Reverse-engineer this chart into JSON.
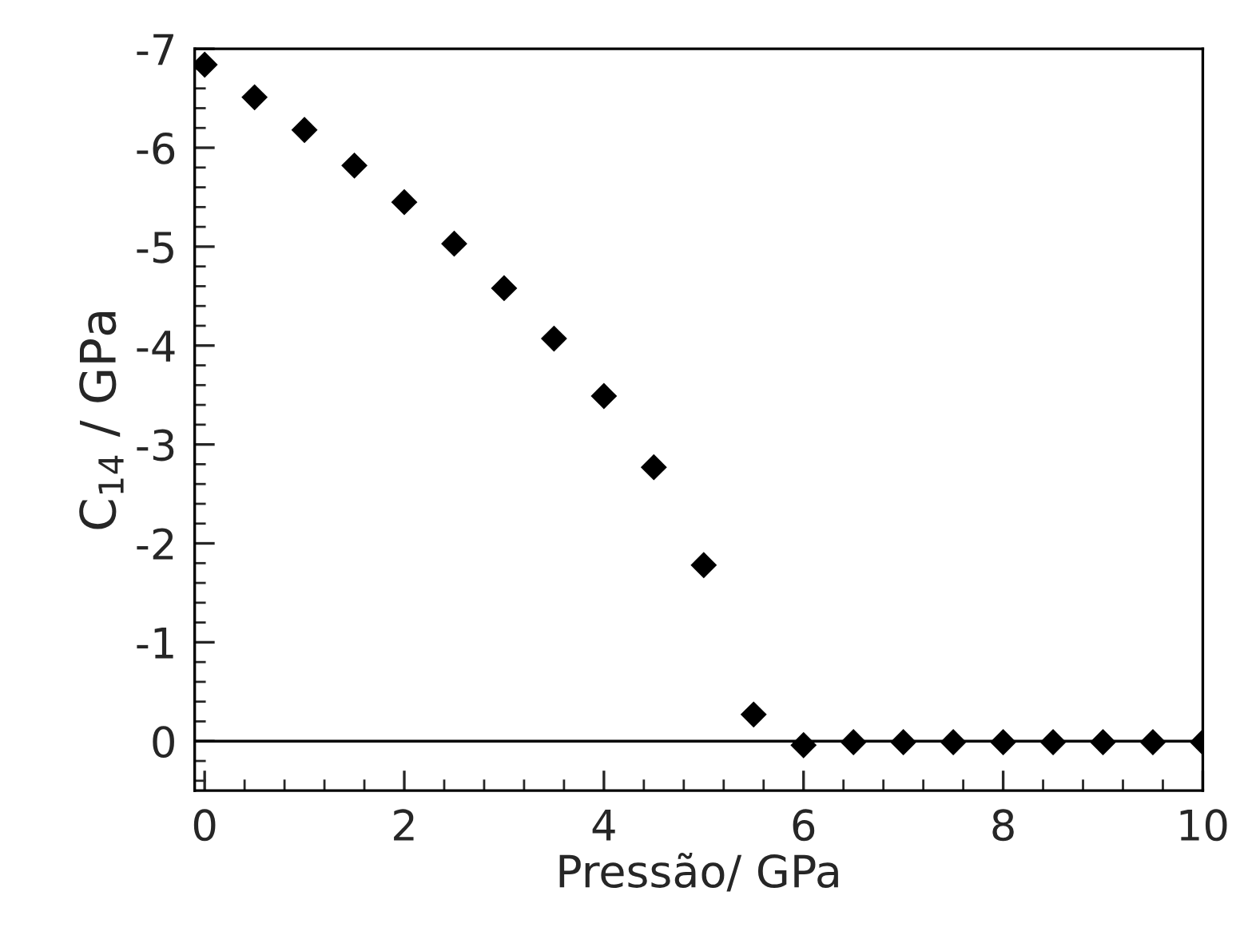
{
  "chart_data": {
    "type": "scatter",
    "xlabel": "Pressão/ GPa",
    "ylabel": "C$_{14}$ / GPa",
    "x": [
      0,
      0.5,
      1,
      1.5,
      2,
      2.5,
      3,
      3.5,
      4,
      4.5,
      5,
      5.5,
      6,
      6.5,
      7,
      7.5,
      8,
      8.5,
      9,
      9.5,
      10
    ],
    "series": [
      {
        "color": "#000000",
        "values": [
          -6.84,
          -6.51,
          -6.18,
          -5.82,
          -5.45,
          -5.03,
          -4.58,
          -4.07,
          -3.49,
          -2.77,
          -1.78,
          -0.27,
          0.04,
          0.01,
          0.01,
          0.01,
          0.01,
          0.01,
          0.01,
          0.01,
          0.01
        ]
      }
    ],
    "xlim": [
      -0.1,
      10
    ],
    "xticks": [
      0,
      2,
      4,
      6,
      8,
      10
    ],
    "ylim": [
      0.5,
      -7
    ],
    "yticks": [
      0,
      -1,
      -2,
      -3,
      -4,
      -5,
      -6,
      -7
    ],
    "ref_lines": [
      {
        "axis": "y",
        "value": 0,
        "color": "#000000"
      }
    ],
    "marker": "diamond",
    "grid": false,
    "legend": false
  }
}
